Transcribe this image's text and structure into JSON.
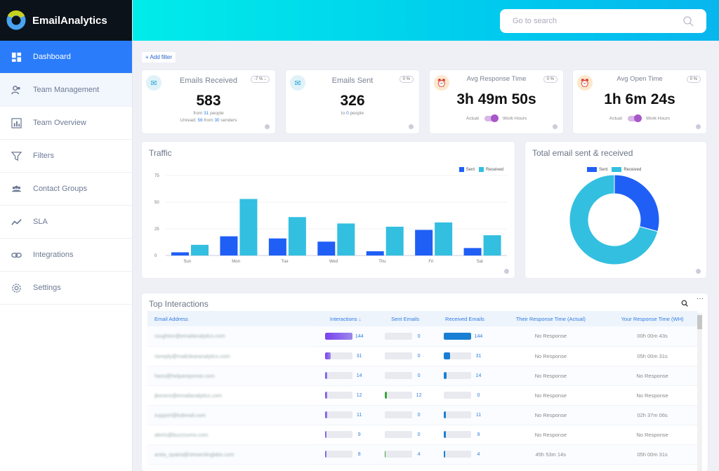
{
  "brand": {
    "name": "EmailAnalytics"
  },
  "sidebar": {
    "items": [
      {
        "label": "Dashboard",
        "icon": "dashboard-icon"
      },
      {
        "label": "Team Management",
        "icon": "team-icon"
      },
      {
        "label": "Team Overview",
        "icon": "chart-icon"
      },
      {
        "label": "Filters",
        "icon": "filter-icon"
      },
      {
        "label": "Contact Groups",
        "icon": "group-icon"
      },
      {
        "label": "SLA",
        "icon": "trend-icon"
      },
      {
        "label": "Integrations",
        "icon": "link-icon"
      },
      {
        "label": "Settings",
        "icon": "gear-icon"
      }
    ]
  },
  "search": {
    "placeholder": "Go to search"
  },
  "add_filter": "+ Add filter",
  "stats": [
    {
      "title": "Emails Received",
      "badge": "-7 % ↓",
      "value": "583",
      "line1": [
        "from ",
        "31",
        " people"
      ],
      "line2": [
        "Unread: ",
        "56",
        " from ",
        "30",
        " senders"
      ]
    },
    {
      "title": "Emails Sent",
      "badge": "0 %",
      "value": "326",
      "line1": [
        "to ",
        "0",
        " people"
      ]
    },
    {
      "title": "Avg Response Time",
      "badge": "0 %",
      "value": "3h 49m 50s",
      "toggle_left": "Actual",
      "toggle_right": "Work Hours"
    },
    {
      "title": "Avg Open Time",
      "badge": "0 %",
      "value": "1h 6m 24s",
      "toggle_left": "Actual",
      "toggle_right": "Work Hours"
    }
  ],
  "colors": {
    "sent": "#1f5ff5",
    "received": "#33bfe0",
    "interactions": "#7b4ff0",
    "sent_bar": "#3aa53a",
    "received_bar": "#1a7fd4"
  },
  "chart_data": [
    {
      "type": "bar",
      "title": "Traffic",
      "categories": [
        "Sun",
        "Mon",
        "Tue",
        "Wed",
        "Thu",
        "Fri",
        "Sat"
      ],
      "series": [
        {
          "name": "Sent",
          "values": [
            3,
            18,
            16,
            13,
            4,
            24,
            7
          ]
        },
        {
          "name": "Received",
          "values": [
            10,
            53,
            36,
            30,
            27,
            31,
            19
          ]
        }
      ],
      "yticks": [
        0,
        25,
        50,
        75
      ],
      "ylim": [
        0,
        75
      ],
      "legend": "top-right"
    },
    {
      "type": "pie",
      "title": "Total email sent & received",
      "labels": [
        "Sent",
        "Received"
      ],
      "values": [
        85,
        206
      ],
      "donut": true,
      "legend": "top"
    }
  ],
  "interactions": {
    "title": "Top Interactions",
    "columns": [
      "Email Address",
      "Interactions ↓",
      "Sent Emails",
      "Received Emails",
      "Their Response Time (Actual)",
      "Your Response Time (WH)"
    ],
    "max": 144,
    "rows": [
      {
        "email": "roughton@emailanalytics.com",
        "interactions": 144,
        "sent": 0,
        "received": 144,
        "their": "No Response",
        "your": "00h 00m 43s"
      },
      {
        "email": "noreply@mailclearanalytics.com",
        "interactions": 31,
        "sent": 0,
        "received": 31,
        "their": "No Response",
        "your": "05h 00m 31s"
      },
      {
        "email": "hans@helpareponse.com",
        "interactions": 14,
        "sent": 0,
        "received": 14,
        "their": "No Response",
        "your": "No Response"
      },
      {
        "email": "jbonero@emailanalytics.com",
        "interactions": 12,
        "sent": 12,
        "received": 0,
        "their": "No Response",
        "your": "No Response"
      },
      {
        "email": "support@tubmail.com",
        "interactions": 11,
        "sent": 0,
        "received": 11,
        "their": "No Response",
        "your": "02h 37m 06s"
      },
      {
        "email": "alerts@buzzsumo.com",
        "interactions": 9,
        "sent": 0,
        "received": 9,
        "their": "No Response",
        "your": "No Response"
      },
      {
        "email": "anita_spatra@streamlinglabs.com",
        "interactions": 8,
        "sent": 4,
        "received": 4,
        "their": "45h 53m 14s",
        "your": "05h 00m 31s"
      }
    ]
  }
}
